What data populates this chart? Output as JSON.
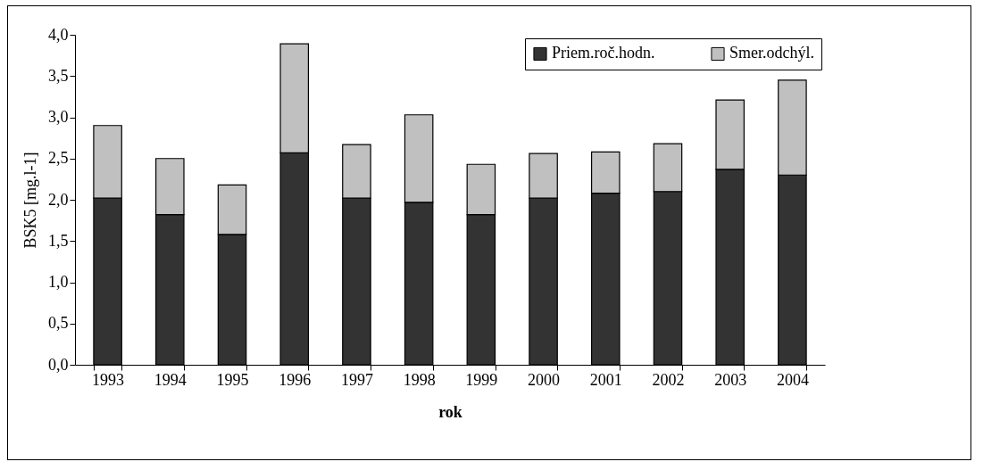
{
  "chart_data": {
    "type": "bar",
    "stacked": true,
    "xlabel": "rok",
    "ylabel": "BSK5 [mg.l-1]",
    "categories": [
      "1993",
      "1994",
      "1995",
      "1996",
      "1997",
      "1998",
      "1999",
      "2000",
      "2001",
      "2002",
      "2003",
      "2004"
    ],
    "series": [
      {
        "name": "Priem.roč.hodn.",
        "color": "#333333",
        "values": [
          2.02,
          1.82,
          1.58,
          2.57,
          2.02,
          1.97,
          1.82,
          2.02,
          2.08,
          2.1,
          2.37,
          2.3
        ]
      },
      {
        "name": "Smer.odchýl.",
        "color": "#c0c0c0",
        "values": [
          0.88,
          0.68,
          0.6,
          1.32,
          0.65,
          1.06,
          0.61,
          0.54,
          0.5,
          0.58,
          0.84,
          1.15
        ]
      }
    ],
    "ylim": [
      0,
      4
    ],
    "yticks": [
      {
        "value": 0,
        "label": "0,0"
      },
      {
        "value": 0.5,
        "label": "0,5"
      },
      {
        "value": 1,
        "label": "1,0"
      },
      {
        "value": 1.5,
        "label": "1,5"
      },
      {
        "value": 2,
        "label": "2,0"
      },
      {
        "value": 2.5,
        "label": "2,5"
      },
      {
        "value": 3,
        "label": "3,0"
      },
      {
        "value": 3.5,
        "label": "3,5"
      },
      {
        "value": 4,
        "label": "4,0"
      }
    ],
    "grid": false,
    "legend": "top right"
  }
}
